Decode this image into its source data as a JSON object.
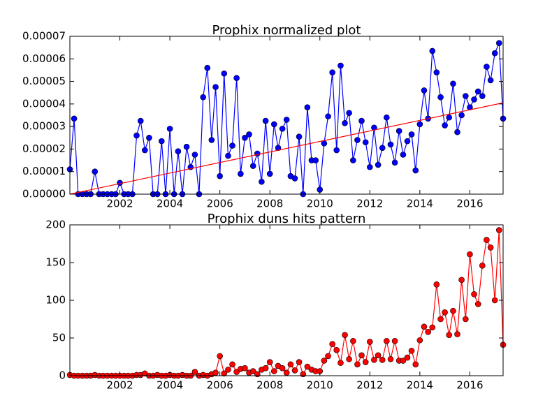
{
  "chart_data": [
    {
      "type": "line",
      "title": "Prophix normalized plot",
      "x": [
        2000,
        2000.17,
        2000.33,
        2000.5,
        2000.67,
        2000.83,
        2001,
        2001.17,
        2001.33,
        2001.5,
        2001.67,
        2001.83,
        2002,
        2002.17,
        2002.33,
        2002.5,
        2002.67,
        2002.83,
        2003,
        2003.17,
        2003.33,
        2003.5,
        2003.67,
        2003.83,
        2004,
        2004.17,
        2004.33,
        2004.5,
        2004.67,
        2004.83,
        2005,
        2005.17,
        2005.33,
        2005.5,
        2005.67,
        2005.83,
        2006,
        2006.17,
        2006.33,
        2006.5,
        2006.67,
        2006.83,
        2007,
        2007.17,
        2007.33,
        2007.5,
        2007.67,
        2007.83,
        2008,
        2008.17,
        2008.33,
        2008.5,
        2008.67,
        2008.83,
        2009,
        2009.17,
        2009.33,
        2009.5,
        2009.67,
        2009.83,
        2010,
        2010.17,
        2010.33,
        2010.5,
        2010.67,
        2010.83,
        2011,
        2011.17,
        2011.33,
        2011.5,
        2011.67,
        2011.83,
        2012,
        2012.17,
        2012.33,
        2012.5,
        2012.67,
        2012.83,
        2013,
        2013.17,
        2013.33,
        2013.5,
        2013.67,
        2013.83,
        2014,
        2014.17,
        2014.33,
        2014.5,
        2014.67,
        2014.83,
        2015,
        2015.17,
        2015.33,
        2015.5,
        2015.67,
        2015.83,
        2016,
        2016.17,
        2016.33,
        2016.5,
        2016.67,
        2016.83,
        2017,
        2017.17,
        2017.33
      ],
      "series": [
        {
          "color": "#0000ff",
          "values": [
            1.1e-05,
            3.35e-05,
            0,
            0,
            0,
            0,
            1e-05,
            0,
            0,
            0,
            0,
            0,
            5e-06,
            0,
            0,
            0,
            2.6e-05,
            3.25e-05,
            1.95e-05,
            2.5e-05,
            0,
            0,
            2.35e-05,
            0,
            2.9e-05,
            0,
            1.9e-05,
            0,
            2.1e-05,
            1.2e-05,
            1.75e-05,
            0,
            4.3e-05,
            5.6e-05,
            2.4e-05,
            4.75e-05,
            8e-06,
            5.35e-05,
            1.7e-05,
            2.15e-05,
            5.15e-05,
            9e-06,
            2.5e-05,
            2.65e-05,
            1.25e-05,
            1.8e-05,
            5.5e-06,
            3.25e-05,
            9e-06,
            3.1e-05,
            2.05e-05,
            2.9e-05,
            3.3e-05,
            8e-06,
            7e-06,
            2.55e-05,
            0,
            3.85e-05,
            1.5e-05,
            1.5e-05,
            2e-06,
            2.25e-05,
            3.45e-05,
            5.4e-05,
            1.95e-05,
            5.7e-05,
            3.15e-05,
            3.6e-05,
            1.5e-05,
            2.4e-05,
            3.25e-05,
            2.3e-05,
            1.2e-05,
            2.95e-05,
            1.3e-05,
            2.05e-05,
            3.4e-05,
            2.2e-05,
            1.4e-05,
            2.8e-05,
            1.75e-05,
            2.35e-05,
            2.65e-05,
            1.05e-05,
            3.1e-05,
            4.6e-05,
            3.35e-05,
            6.35e-05,
            5.4e-05,
            4.3e-05,
            3.05e-05,
            3.4e-05,
            4.9e-05,
            2.75e-05,
            3.5e-05,
            4.35e-05,
            3.85e-05,
            4.2e-05,
            4.55e-05,
            4.35e-05,
            5.65e-05,
            5.05e-05,
            6.25e-05,
            6.7e-05,
            3.35e-05
          ]
        }
      ],
      "trend": {
        "color": "#ff0000",
        "x": [
          2000,
          2017.33
        ],
        "values": [
          0,
          4.05e-05
        ]
      },
      "xlim": [
        2000,
        2017.33
      ],
      "xticks": [
        2002,
        2004,
        2006,
        2008,
        2010,
        2012,
        2014,
        2016
      ],
      "ylim": [
        0,
        7e-05
      ],
      "yticks": [
        {
          "value": 0,
          "label": "0.00000"
        },
        {
          "value": 1e-05,
          "label": "0.00001"
        },
        {
          "value": 2e-05,
          "label": "0.00002"
        },
        {
          "value": 3e-05,
          "label": "0.00003"
        },
        {
          "value": 4e-05,
          "label": "0.00004"
        },
        {
          "value": 5e-05,
          "label": "0.00005"
        },
        {
          "value": 6e-05,
          "label": "0.00006"
        },
        {
          "value": 7e-05,
          "label": "0.00007"
        }
      ]
    },
    {
      "type": "line",
      "title": "Prophix duns hits pattern",
      "x": [
        2000,
        2000.17,
        2000.33,
        2000.5,
        2000.67,
        2000.83,
        2001,
        2001.17,
        2001.33,
        2001.5,
        2001.67,
        2001.83,
        2002,
        2002.17,
        2002.33,
        2002.5,
        2002.67,
        2002.83,
        2003,
        2003.17,
        2003.33,
        2003.5,
        2003.67,
        2003.83,
        2004,
        2004.17,
        2004.33,
        2004.5,
        2004.67,
        2004.83,
        2005,
        2005.17,
        2005.33,
        2005.5,
        2005.67,
        2005.83,
        2006,
        2006.17,
        2006.33,
        2006.5,
        2006.67,
        2006.83,
        2007,
        2007.17,
        2007.33,
        2007.5,
        2007.67,
        2007.83,
        2008,
        2008.17,
        2008.33,
        2008.5,
        2008.67,
        2008.83,
        2009,
        2009.17,
        2009.33,
        2009.5,
        2009.67,
        2009.83,
        2010,
        2010.17,
        2010.33,
        2010.5,
        2010.67,
        2010.83,
        2011,
        2011.17,
        2011.33,
        2011.5,
        2011.67,
        2011.83,
        2012,
        2012.17,
        2012.33,
        2012.5,
        2012.67,
        2012.83,
        2013,
        2013.17,
        2013.33,
        2013.5,
        2013.67,
        2013.83,
        2014,
        2014.17,
        2014.33,
        2014.5,
        2014.67,
        2014.83,
        2015,
        2015.17,
        2015.33,
        2015.5,
        2015.67,
        2015.83,
        2016,
        2016.17,
        2016.33,
        2016.5,
        2016.67,
        2016.83,
        2017,
        2017.17,
        2017.33
      ],
      "series": [
        {
          "color": "#ff0000",
          "values": [
            1,
            0,
            0,
            0,
            0,
            0,
            1,
            0,
            0,
            0,
            0,
            0,
            0,
            0,
            0,
            0,
            1,
            1,
            3,
            0,
            0,
            1,
            0,
            0,
            1,
            0,
            0,
            1,
            0,
            0,
            5,
            0,
            1,
            0,
            2,
            4,
            26,
            3,
            8,
            15,
            5,
            9,
            10,
            4,
            6,
            2,
            8,
            10,
            18,
            6,
            13,
            10,
            4,
            15,
            7,
            18,
            2,
            12,
            8,
            6,
            6,
            20,
            26,
            42,
            34,
            17,
            54,
            22,
            46,
            15,
            27,
            18,
            45,
            21,
            27,
            21,
            46,
            22,
            46,
            20,
            20,
            24,
            33,
            15,
            47,
            65,
            58,
            64,
            121,
            75,
            84,
            54,
            86,
            55,
            127,
            75,
            161,
            108,
            95,
            146,
            180,
            170,
            100,
            193,
            41
          ]
        }
      ],
      "xlim": [
        2000,
        2017.33
      ],
      "xticks": [
        2002,
        2004,
        2006,
        2008,
        2010,
        2012,
        2014,
        2016
      ],
      "ylim": [
        0,
        200
      ],
      "yticks": [
        0,
        50,
        100,
        150,
        200
      ]
    }
  ]
}
